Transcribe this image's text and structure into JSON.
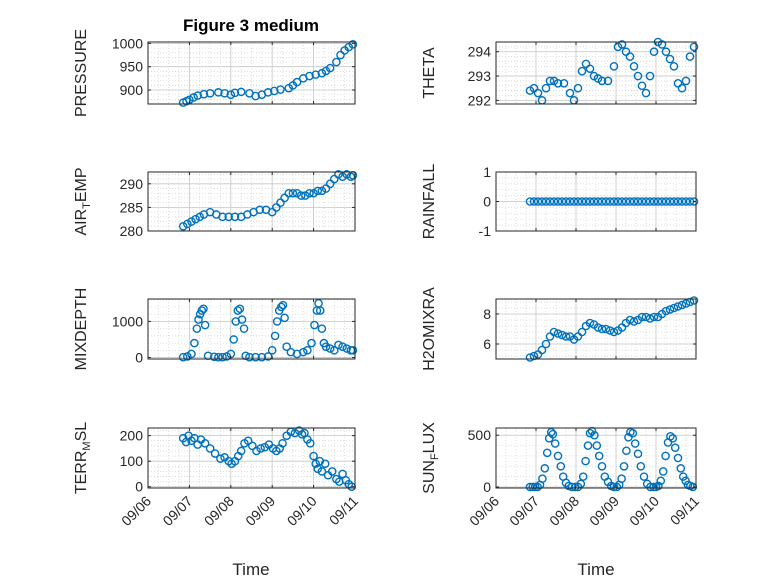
{
  "figure_title": "Figure 3 medium",
  "marker_color": "#0072bd",
  "chart_data": [
    {
      "type": "scatter",
      "name": "pressure",
      "ylabel_main": "PRESSURE",
      "ylabel_sub": "",
      "ylim": [
        870,
        1003
      ],
      "yticks": [
        900,
        950,
        1000
      ],
      "xlim": [
        0,
        5
      ],
      "xticks": [
        "09/06",
        "09/07",
        "09/08",
        "09/09",
        "09/10",
        "09/11"
      ],
      "show_xticks": false,
      "xlabel": "",
      "x": [
        0.85,
        0.93,
        1.0,
        1.1,
        1.2,
        1.35,
        1.5,
        1.7,
        1.85,
        2.0,
        2.1,
        2.25,
        2.45,
        2.6,
        2.75,
        2.9,
        3.05,
        3.2,
        3.4,
        3.5,
        3.6,
        3.75,
        3.9,
        4.05,
        4.2,
        4.3,
        4.4,
        4.55,
        4.65,
        4.75,
        4.85,
        4.95
      ],
      "y": [
        873,
        876,
        879,
        884,
        888,
        891,
        893,
        895,
        893,
        890,
        894,
        896,
        893,
        887,
        890,
        895,
        898,
        901,
        904,
        910,
        917,
        925,
        930,
        933,
        936,
        941,
        947,
        960,
        975,
        985,
        992,
        998
      ]
    },
    {
      "type": "scatter",
      "name": "theta",
      "ylabel_main": "THETA",
      "ylabel_sub": "",
      "ylim": [
        291.85,
        294.4
      ],
      "yticks": [
        292,
        293,
        294
      ],
      "xlim": [
        0,
        5
      ],
      "xticks": [
        "09/06",
        "09/07",
        "09/08",
        "09/09",
        "09/10",
        "09/11"
      ],
      "show_xticks": false,
      "xlabel": "",
      "x": [
        0.85,
        0.95,
        1.05,
        1.15,
        1.25,
        1.35,
        1.45,
        1.55,
        1.7,
        1.85,
        1.95,
        2.05,
        2.15,
        2.25,
        2.35,
        2.45,
        2.55,
        2.65,
        2.8,
        2.95,
        3.05,
        3.15,
        3.25,
        3.35,
        3.45,
        3.55,
        3.65,
        3.75,
        3.85,
        3.95,
        4.05,
        4.15,
        4.25,
        4.35,
        4.45,
        4.55,
        4.65,
        4.75,
        4.85,
        4.95
      ],
      "y": [
        292.4,
        292.5,
        292.3,
        292.0,
        292.5,
        292.8,
        292.8,
        292.7,
        292.7,
        292.3,
        292.0,
        292.5,
        293.2,
        293.5,
        293.3,
        293.0,
        292.9,
        292.8,
        292.8,
        293.4,
        294.2,
        294.3,
        294.0,
        293.8,
        293.4,
        293.0,
        292.6,
        292.3,
        293.0,
        294.0,
        294.4,
        294.3,
        294.0,
        293.7,
        293.4,
        292.7,
        292.5,
        292.8,
        293.8,
        294.2
      ]
    },
    {
      "type": "scatter",
      "name": "air_temp",
      "ylabel_main": "AIR",
      "ylabel_sub": "T",
      "ylabel_after": "EMP",
      "ylim": [
        280,
        292.5
      ],
      "yticks": [
        280,
        285,
        290
      ],
      "xlim": [
        0,
        5
      ],
      "xticks": [
        "09/06",
        "09/07",
        "09/08",
        "09/09",
        "09/10",
        "09/11"
      ],
      "show_xticks": false,
      "xlabel": "",
      "x": [
        0.85,
        0.95,
        1.05,
        1.15,
        1.25,
        1.35,
        1.5,
        1.65,
        1.8,
        1.95,
        2.1,
        2.25,
        2.4,
        2.55,
        2.7,
        2.85,
        3.0,
        3.1,
        3.2,
        3.3,
        3.4,
        3.5,
        3.6,
        3.7,
        3.8,
        3.9,
        4.0,
        4.1,
        4.2,
        4.3,
        4.4,
        4.5,
        4.6,
        4.7,
        4.8,
        4.9,
        4.95
      ],
      "y": [
        281,
        281.5,
        282,
        282.5,
        283,
        283.5,
        284,
        283.5,
        283,
        283,
        283,
        283,
        283.5,
        284,
        284.5,
        284.5,
        284,
        285,
        286,
        287,
        288,
        288,
        288,
        287.5,
        287.5,
        288,
        288,
        288.5,
        288.5,
        289,
        290,
        291,
        292,
        291.5,
        292,
        291.5,
        291.8
      ]
    },
    {
      "type": "scatter",
      "name": "rainfall",
      "ylabel_main": "RAINFALL",
      "ylabel_sub": "",
      "ylim": [
        -1,
        1
      ],
      "yticks": [
        -1,
        0,
        1
      ],
      "xlim": [
        0,
        5
      ],
      "xticks": [
        "09/06",
        "09/07",
        "09/08",
        "09/09",
        "09/10",
        "09/11"
      ],
      "show_xticks": false,
      "xlabel": "",
      "x": [
        0.85,
        0.95,
        1.05,
        1.15,
        1.25,
        1.35,
        1.45,
        1.55,
        1.65,
        1.75,
        1.85,
        1.95,
        2.05,
        2.15,
        2.25,
        2.35,
        2.45,
        2.55,
        2.65,
        2.75,
        2.85,
        2.95,
        3.05,
        3.15,
        3.25,
        3.35,
        3.45,
        3.55,
        3.65,
        3.75,
        3.85,
        3.95,
        4.05,
        4.15,
        4.25,
        4.35,
        4.45,
        4.55,
        4.65,
        4.75,
        4.85,
        4.95
      ],
      "y": [
        0,
        0,
        0,
        0,
        0,
        0,
        0,
        0,
        0,
        0,
        0,
        0,
        0,
        0,
        0,
        0,
        0,
        0,
        0,
        0,
        0,
        0,
        0,
        0,
        0,
        0,
        0,
        0,
        0,
        0,
        0,
        0,
        0,
        0,
        0,
        0,
        0,
        0,
        0,
        0,
        0,
        0
      ]
    },
    {
      "type": "scatter",
      "name": "mixdepth",
      "ylabel_main": "MIXDEPTH",
      "ylabel_sub": "",
      "ylim": [
        -40,
        1620
      ],
      "yticks": [
        0,
        1000
      ],
      "xlim": [
        0,
        5
      ],
      "xticks": [
        "09/06",
        "09/07",
        "09/08",
        "09/09",
        "09/10",
        "09/11"
      ],
      "show_xticks": false,
      "xlabel": "",
      "x": [
        0.85,
        0.95,
        1.05,
        1.12,
        1.18,
        1.22,
        1.26,
        1.3,
        1.34,
        1.38,
        1.45,
        1.6,
        1.7,
        1.8,
        1.9,
        2.0,
        2.07,
        2.12,
        2.17,
        2.22,
        2.27,
        2.32,
        2.36,
        2.45,
        2.6,
        2.75,
        2.9,
        3.0,
        3.07,
        3.12,
        3.17,
        3.22,
        3.26,
        3.3,
        3.35,
        3.45,
        3.6,
        3.75,
        3.85,
        3.95,
        4.02,
        4.08,
        4.12,
        4.16,
        4.2,
        4.25,
        4.3,
        4.4,
        4.5,
        4.6,
        4.7,
        4.8,
        4.9,
        4.95
      ],
      "y": [
        10,
        30,
        100,
        400,
        800,
        1050,
        1200,
        1300,
        1350,
        900,
        50,
        20,
        10,
        10,
        30,
        100,
        500,
        1000,
        1300,
        1350,
        1050,
        800,
        50,
        10,
        10,
        10,
        30,
        200,
        600,
        1000,
        1300,
        1400,
        1450,
        1100,
        300,
        150,
        100,
        150,
        200,
        400,
        900,
        1300,
        1500,
        1300,
        800,
        400,
        300,
        250,
        200,
        350,
        300,
        250,
        200,
        200
      ]
    },
    {
      "type": "scatter",
      "name": "h2omixra",
      "ylabel_main": "H2OMIXRA",
      "ylabel_sub": "",
      "ylim": [
        5,
        9
      ],
      "yticks": [
        6,
        8
      ],
      "xlim": [
        0,
        5
      ],
      "xticks": [
        "09/06",
        "09/07",
        "09/08",
        "09/09",
        "09/10",
        "09/11"
      ],
      "show_xticks": false,
      "xlabel": "",
      "x": [
        0.85,
        0.95,
        1.05,
        1.15,
        1.25,
        1.35,
        1.45,
        1.55,
        1.65,
        1.75,
        1.85,
        1.95,
        2.05,
        2.15,
        2.25,
        2.35,
        2.45,
        2.55,
        2.65,
        2.75,
        2.85,
        2.95,
        3.05,
        3.15,
        3.25,
        3.35,
        3.45,
        3.55,
        3.65,
        3.75,
        3.85,
        3.95,
        4.05,
        4.15,
        4.25,
        4.35,
        4.45,
        4.55,
        4.65,
        4.75,
        4.85,
        4.95
      ],
      "y": [
        5.1,
        5.2,
        5.3,
        5.6,
        6.0,
        6.5,
        6.8,
        6.7,
        6.6,
        6.5,
        6.5,
        6.3,
        6.5,
        6.8,
        7.2,
        7.4,
        7.3,
        7.1,
        7.0,
        7.0,
        6.9,
        6.8,
        6.9,
        7.1,
        7.4,
        7.6,
        7.5,
        7.6,
        7.8,
        7.8,
        7.7,
        7.8,
        7.8,
        8.0,
        8.2,
        8.3,
        8.4,
        8.5,
        8.6,
        8.7,
        8.8,
        8.9
      ]
    },
    {
      "type": "scatter",
      "name": "terr_msl",
      "ylabel_main": "TERR",
      "ylabel_sub": "M",
      "ylabel_after": "SL",
      "ylim": [
        -5,
        230
      ],
      "yticks": [
        0,
        100,
        200
      ],
      "xlim": [
        0,
        5
      ],
      "xticks": [
        "09/06",
        "09/07",
        "09/08",
        "09/09",
        "09/10",
        "09/11"
      ],
      "show_xticks": true,
      "xlabel": "",
      "x": [
        0.85,
        0.92,
        0.98,
        1.05,
        1.12,
        1.2,
        1.28,
        1.38,
        1.5,
        1.62,
        1.75,
        1.85,
        1.95,
        2.02,
        2.1,
        2.18,
        2.25,
        2.33,
        2.42,
        2.52,
        2.62,
        2.72,
        2.82,
        2.92,
        3.02,
        3.1,
        3.18,
        3.25,
        3.35,
        3.45,
        3.55,
        3.65,
        3.72,
        3.78,
        3.85,
        3.92,
        4.0,
        4.05,
        4.1,
        4.15,
        4.2,
        4.28,
        4.35,
        4.45,
        4.55,
        4.62,
        4.7,
        4.78,
        4.85,
        4.92
      ],
      "y": [
        190,
        175,
        200,
        180,
        190,
        165,
        185,
        170,
        150,
        130,
        110,
        115,
        100,
        90,
        100,
        120,
        140,
        170,
        180,
        160,
        140,
        150,
        155,
        165,
        150,
        140,
        150,
        170,
        200,
        215,
        210,
        220,
        205,
        210,
        185,
        170,
        120,
        90,
        70,
        100,
        60,
        90,
        45,
        60,
        30,
        20,
        50,
        25,
        10,
        0
      ]
    },
    {
      "type": "scatter",
      "name": "sun_flux",
      "ylabel_main": "SUN",
      "ylabel_sub": "F",
      "ylabel_after": "LUX",
      "ylim": [
        -10,
        570
      ],
      "yticks": [
        0,
        500
      ],
      "xlim": [
        0,
        5
      ],
      "xticks": [
        "09/06",
        "09/07",
        "09/08",
        "09/09",
        "09/10",
        "09/11"
      ],
      "show_xticks": true,
      "xlabel": "Time",
      "x": [
        0.85,
        0.92,
        0.98,
        1.04,
        1.1,
        1.16,
        1.22,
        1.28,
        1.33,
        1.38,
        1.42,
        1.48,
        1.55,
        1.62,
        1.68,
        1.75,
        1.82,
        1.9,
        1.98,
        2.05,
        2.12,
        2.18,
        2.24,
        2.3,
        2.35,
        2.4,
        2.46,
        2.52,
        2.58,
        2.65,
        2.72,
        2.8,
        2.88,
        2.95,
        3.02,
        3.08,
        3.14,
        3.2,
        3.26,
        3.31,
        3.36,
        3.42,
        3.48,
        3.55,
        3.62,
        3.7,
        3.78,
        3.86,
        3.94,
        4.0,
        4.06,
        4.12,
        4.18,
        4.24,
        4.3,
        4.36,
        4.42,
        4.48,
        4.55,
        4.62,
        4.68,
        4.74,
        4.8,
        4.86,
        4.92
      ],
      "y": [
        0,
        0,
        0,
        0,
        20,
        80,
        180,
        330,
        470,
        530,
        510,
        420,
        300,
        200,
        100,
        40,
        10,
        0,
        0,
        0,
        30,
        100,
        250,
        400,
        520,
        540,
        500,
        400,
        300,
        200,
        100,
        50,
        10,
        0,
        0,
        20,
        80,
        200,
        350,
        480,
        530,
        520,
        420,
        320,
        200,
        100,
        30,
        0,
        0,
        0,
        10,
        60,
        150,
        300,
        430,
        490,
        470,
        380,
        280,
        180,
        100,
        60,
        20,
        10,
        0
      ]
    }
  ]
}
